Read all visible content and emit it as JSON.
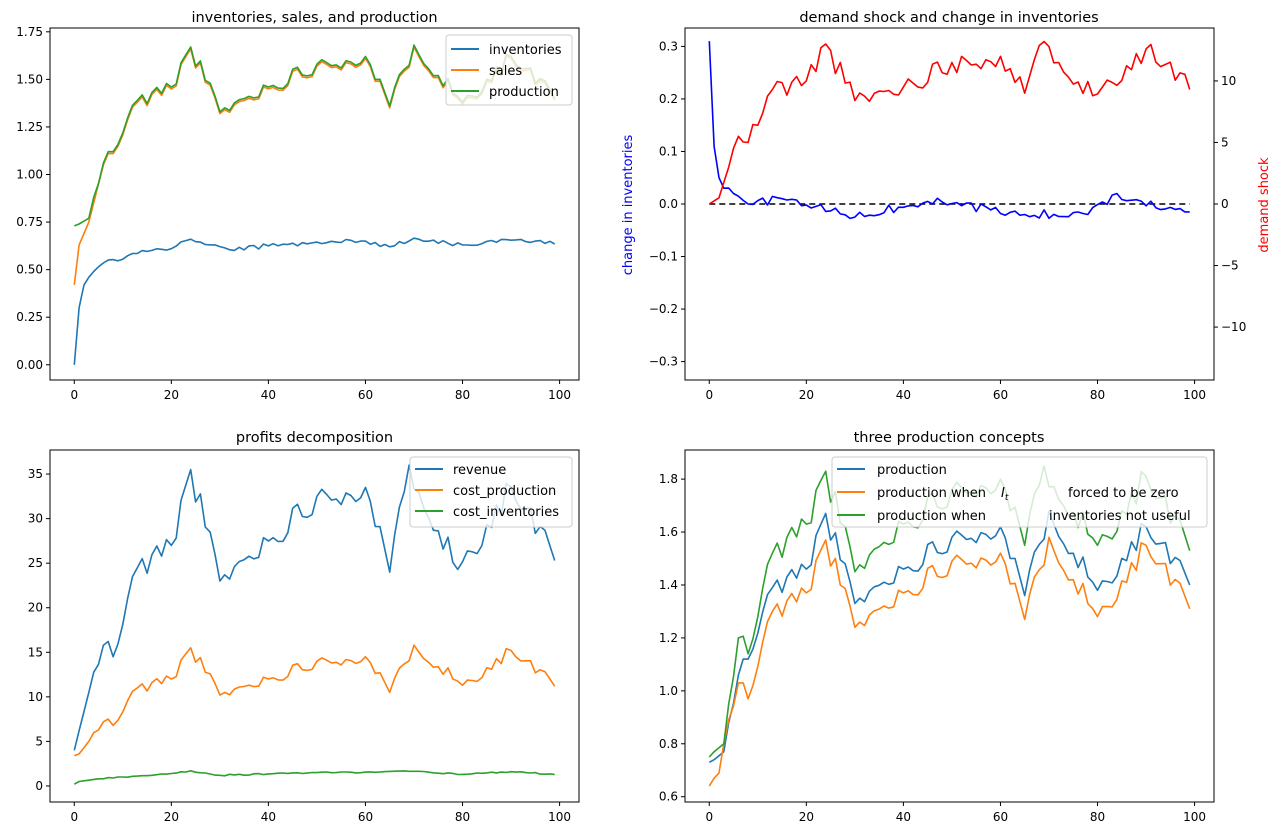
{
  "chart_data": [
    {
      "type": "line",
      "title": "inventories, sales, and production",
      "xlim": [
        -5,
        104
      ],
      "ylim": [
        -0.08,
        1.77
      ],
      "xticks": [
        0,
        20,
        40,
        60,
        80,
        100
      ],
      "yticks": [
        0.0,
        0.25,
        0.5,
        0.75,
        1.0,
        1.25,
        1.5,
        1.75
      ],
      "ytick_labels": [
        "0.00",
        "0.25",
        "0.50",
        "0.75",
        "1.00",
        "1.25",
        "1.50",
        "1.75"
      ],
      "legend": [
        "inventories",
        "sales",
        "production"
      ],
      "legend_loc": "upper right",
      "series_colors": [
        "#1f77b4",
        "#ff7f0e",
        "#2ca02c"
      ],
      "key_points": {
        "inventories": [
          [
            0,
            0.0
          ],
          [
            1,
            0.3
          ],
          [
            2,
            0.42
          ],
          [
            3,
            0.46
          ],
          [
            4,
            0.49
          ],
          [
            5,
            0.515
          ],
          [
            6,
            0.535
          ],
          [
            7,
            0.55
          ],
          [
            10,
            0.555
          ],
          [
            14,
            0.6
          ],
          [
            20,
            0.61
          ],
          [
            24,
            0.66
          ],
          [
            32,
            0.605
          ],
          [
            40,
            0.625
          ],
          [
            50,
            0.645
          ],
          [
            60,
            0.65
          ],
          [
            65,
            0.62
          ],
          [
            70,
            0.665
          ],
          [
            80,
            0.63
          ],
          [
            90,
            0.655
          ],
          [
            99,
            0.635
          ]
        ],
        "sales": [
          [
            0,
            0.42
          ],
          [
            1,
            0.63
          ],
          [
            3,
            0.75
          ],
          [
            6,
            1.05
          ],
          [
            8,
            1.1
          ],
          [
            13,
            1.38
          ],
          [
            20,
            1.45
          ],
          [
            24,
            1.66
          ],
          [
            30,
            1.35
          ],
          [
            40,
            1.45
          ],
          [
            50,
            1.58
          ],
          [
            60,
            1.62
          ],
          [
            65,
            1.36
          ],
          [
            70,
            1.67
          ],
          [
            80,
            1.38
          ],
          [
            90,
            1.6
          ],
          [
            99,
            1.38
          ]
        ],
        "production": [
          [
            0,
            0.73
          ],
          [
            1,
            0.74
          ],
          [
            3,
            0.77
          ],
          [
            6,
            1.06
          ],
          [
            8,
            1.12
          ],
          [
            13,
            1.39
          ],
          [
            20,
            1.46
          ],
          [
            24,
            1.67
          ],
          [
            30,
            1.33
          ],
          [
            40,
            1.46
          ],
          [
            50,
            1.58
          ],
          [
            60,
            1.62
          ],
          [
            65,
            1.36
          ],
          [
            70,
            1.68
          ],
          [
            80,
            1.38
          ],
          [
            90,
            1.62
          ],
          [
            99,
            1.4
          ]
        ]
      }
    },
    {
      "type": "line",
      "title": "demand shock and change in inventories",
      "xlim": [
        -5,
        104
      ],
      "ylim": [
        -0.335,
        0.335
      ],
      "ylim_right": [
        -14.3,
        14.3
      ],
      "xticks": [
        0,
        20,
        40,
        60,
        80,
        100
      ],
      "yticks": [
        -0.3,
        -0.2,
        -0.1,
        0.0,
        0.1,
        0.2,
        0.3
      ],
      "ytick_labels": [
        "−0.3",
        "−0.2",
        "−0.1",
        "0.0",
        "0.1",
        "0.2",
        "0.3"
      ],
      "yticks_right": [
        -10,
        -5,
        0,
        5,
        10
      ],
      "ytick_right_labels": [
        "−10",
        "−5",
        "0",
        "5",
        "10"
      ],
      "ylabel": "change in inventories",
      "ylabel_color": "#0000ff",
      "ylabel_right": "demand shock",
      "ylabel_right_color": "#ff0000",
      "zero_line": "black dashed",
      "key_points": {
        "change_in_inventories": [
          [
            0,
            0.31
          ],
          [
            1,
            0.11
          ],
          [
            2,
            0.05
          ],
          [
            3,
            0.03
          ],
          [
            5,
            0.02
          ],
          [
            8,
            0.0
          ],
          [
            15,
            0.01
          ],
          [
            30,
            -0.025
          ],
          [
            45,
            0.005
          ],
          [
            65,
            -0.02
          ],
          [
            78,
            -0.02
          ],
          [
            84,
            0.02
          ],
          [
            98,
            -0.015
          ],
          [
            99,
            -0.015
          ]
        ],
        "demand_shock": [
          [
            0,
            0.0
          ],
          [
            2,
            0.5
          ],
          [
            4,
            3.0
          ],
          [
            6,
            5.5
          ],
          [
            8,
            5.0
          ],
          [
            13,
            9.3
          ],
          [
            20,
            10.0
          ],
          [
            24,
            13.0
          ],
          [
            30,
            8.4
          ],
          [
            40,
            9.5
          ],
          [
            50,
            11.5
          ],
          [
            60,
            12.0
          ],
          [
            65,
            9.0
          ],
          [
            69,
            13.2
          ],
          [
            79,
            8.8
          ],
          [
            90,
            12.6
          ],
          [
            99,
            9.3
          ]
        ]
      }
    },
    {
      "type": "line",
      "title": "profits decomposition",
      "xlim": [
        -5,
        104
      ],
      "ylim": [
        -1.8,
        37.7
      ],
      "xticks": [
        0,
        20,
        40,
        60,
        80,
        100
      ],
      "yticks": [
        0,
        5,
        10,
        15,
        20,
        25,
        30,
        35
      ],
      "ytick_labels": [
        "0",
        "5",
        "10",
        "15",
        "20",
        "25",
        "30",
        "35"
      ],
      "legend": [
        "revenue",
        "cost_production",
        "cost_inventories"
      ],
      "legend_loc": "upper right",
      "series_colors": [
        "#1f77b4",
        "#ff7f0e",
        "#2ca02c"
      ],
      "key_points": {
        "revenue": [
          [
            0,
            4.0
          ],
          [
            1,
            6.2
          ],
          [
            3,
            10.5
          ],
          [
            6,
            15.8
          ],
          [
            8,
            14.5
          ],
          [
            13,
            24.5
          ],
          [
            20,
            27.0
          ],
          [
            24,
            35.5
          ],
          [
            30,
            23.0
          ],
          [
            40,
            27.5
          ],
          [
            50,
            32.5
          ],
          [
            60,
            33.5
          ],
          [
            65,
            24.0
          ],
          [
            69,
            36.0
          ],
          [
            79,
            24.3
          ],
          [
            90,
            33.5
          ],
          [
            99,
            25.3
          ]
        ],
        "cost_production": [
          [
            0,
            3.4
          ],
          [
            1,
            3.6
          ],
          [
            3,
            5.0
          ],
          [
            6,
            7.2
          ],
          [
            8,
            6.8
          ],
          [
            13,
            11.0
          ],
          [
            20,
            12.0
          ],
          [
            24,
            15.5
          ],
          [
            30,
            10.2
          ],
          [
            40,
            12.0
          ],
          [
            50,
            14.0
          ],
          [
            60,
            14.5
          ],
          [
            65,
            10.5
          ],
          [
            70,
            15.8
          ],
          [
            80,
            11.3
          ],
          [
            90,
            15.2
          ],
          [
            99,
            11.2
          ]
        ],
        "cost_inventories": [
          [
            0,
            0.2
          ],
          [
            1,
            0.5
          ],
          [
            5,
            0.8
          ],
          [
            10,
            1.0
          ],
          [
            20,
            1.4
          ],
          [
            24,
            1.7
          ],
          [
            30,
            1.2
          ],
          [
            40,
            1.35
          ],
          [
            50,
            1.5
          ],
          [
            60,
            1.55
          ],
          [
            70,
            1.65
          ],
          [
            80,
            1.3
          ],
          [
            90,
            1.6
          ],
          [
            99,
            1.3
          ]
        ]
      }
    },
    {
      "type": "line",
      "title": "three production concepts",
      "xlim": [
        -5,
        104
      ],
      "ylim": [
        0.58,
        1.91
      ],
      "xticks": [
        0,
        20,
        40,
        60,
        80,
        100
      ],
      "yticks": [
        0.6,
        0.8,
        1.0,
        1.2,
        1.4,
        1.6,
        1.8
      ],
      "ytick_labels": [
        "0.6",
        "0.8",
        "1.0",
        "1.2",
        "1.4",
        "1.6",
        "1.8"
      ],
      "legend": [
        "production",
        "production when",
        "production when"
      ],
      "legend_math": "I",
      "legend_math_sub": "t",
      "legend_suffix": [
        "",
        "forced to be zero",
        "inventories not useful"
      ],
      "legend_loc": "upper right",
      "series_colors": [
        "#1f77b4",
        "#ff7f0e",
        "#2ca02c"
      ],
      "key_points": {
        "production": [
          [
            0,
            0.73
          ],
          [
            1,
            0.74
          ],
          [
            3,
            0.77
          ],
          [
            6,
            1.06
          ],
          [
            8,
            1.12
          ],
          [
            13,
            1.39
          ],
          [
            20,
            1.46
          ],
          [
            24,
            1.67
          ],
          [
            30,
            1.33
          ],
          [
            40,
            1.46
          ],
          [
            50,
            1.58
          ],
          [
            60,
            1.62
          ],
          [
            65,
            1.36
          ],
          [
            70,
            1.68
          ],
          [
            80,
            1.38
          ],
          [
            90,
            1.62
          ],
          [
            99,
            1.4
          ]
        ],
        "production_inventories_forced_zero": [
          [
            0,
            0.64
          ],
          [
            1,
            0.67
          ],
          [
            2,
            0.69
          ],
          [
            3,
            0.8
          ],
          [
            6,
            1.03
          ],
          [
            8,
            0.97
          ],
          [
            13,
            1.3
          ],
          [
            20,
            1.37
          ],
          [
            24,
            1.57
          ],
          [
            30,
            1.24
          ],
          [
            40,
            1.37
          ],
          [
            50,
            1.49
          ],
          [
            60,
            1.52
          ],
          [
            65,
            1.27
          ],
          [
            70,
            1.58
          ],
          [
            80,
            1.28
          ],
          [
            90,
            1.55
          ],
          [
            99,
            1.31
          ]
        ],
        "production_inventories_not_useful": [
          [
            0,
            0.75
          ],
          [
            1,
            0.77
          ],
          [
            3,
            0.8
          ],
          [
            6,
            1.2
          ],
          [
            8,
            1.14
          ],
          [
            13,
            1.52
          ],
          [
            20,
            1.63
          ],
          [
            24,
            1.83
          ],
          [
            30,
            1.45
          ],
          [
            40,
            1.63
          ],
          [
            50,
            1.76
          ],
          [
            60,
            1.8
          ],
          [
            65,
            1.55
          ],
          [
            69,
            1.85
          ],
          [
            80,
            1.55
          ],
          [
            90,
            1.81
          ],
          [
            99,
            1.53
          ]
        ]
      }
    }
  ]
}
